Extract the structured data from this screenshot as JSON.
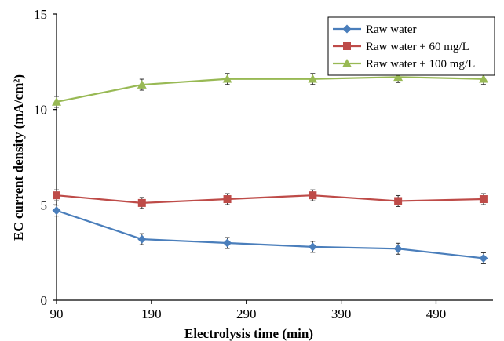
{
  "chart_data": {
    "type": "line",
    "title": "",
    "xlabel": "Electrolysis time (min)",
    "ylabel": "EC current density (mA/cm²)",
    "xlim": [
      90,
      550
    ],
    "ylim": [
      0,
      15
    ],
    "x_ticks": [
      90,
      190,
      290,
      390,
      490
    ],
    "y_ticks": [
      0,
      5,
      10,
      15
    ],
    "grid": false,
    "legend_position": "top-right",
    "x": [
      90,
      180,
      270,
      360,
      450,
      540
    ],
    "series": [
      {
        "name": "Raw water",
        "color": "#4a7ebb",
        "marker": "diamond",
        "values": [
          4.7,
          3.2,
          3.0,
          2.8,
          2.7,
          2.2
        ]
      },
      {
        "name": "Raw water + 60 mg/L",
        "color": "#be4b48",
        "marker": "square",
        "values": [
          5.5,
          5.1,
          5.3,
          5.5,
          5.2,
          5.3
        ]
      },
      {
        "name": "Raw water + 100 mg/L",
        "color": "#98b954",
        "marker": "triangle",
        "values": [
          10.4,
          11.3,
          11.6,
          11.6,
          11.7,
          11.6
        ]
      }
    ]
  }
}
